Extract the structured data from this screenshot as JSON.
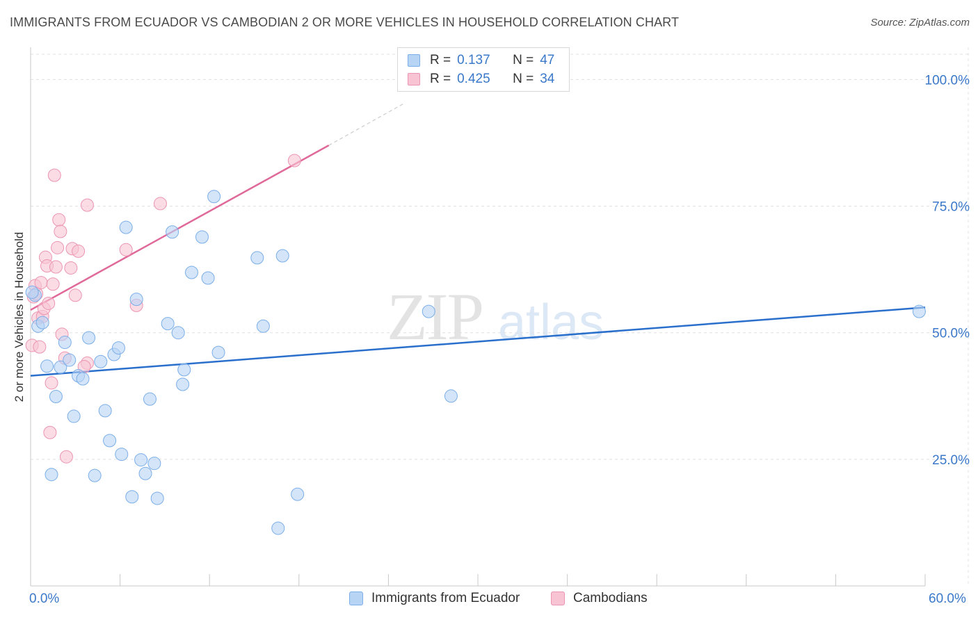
{
  "title": "IMMIGRANTS FROM ECUADOR VS CAMBODIAN 2 OR MORE VEHICLES IN HOUSEHOLD CORRELATION CHART",
  "source": "Source: ZipAtlas.com",
  "watermark": {
    "zip": "ZIP",
    "atlas": "atlas"
  },
  "legend": {
    "r_label": "R =",
    "n_label": "N =",
    "rows": [
      {
        "r": "0.137",
        "n": "47"
      },
      {
        "r": "0.425",
        "n": "34"
      }
    ]
  },
  "colors": {
    "series1_fill": "#b8d4f5",
    "series1_stroke": "#7aaee8",
    "series1_line": "#2a6fcc",
    "series2_fill": "#f8c4d4",
    "series2_stroke": "#ec94b2",
    "series2_line": "#e0699a",
    "axis_text": "#3a78c9"
  },
  "chart_data": {
    "type": "scatter",
    "title": "IMMIGRANTS FROM ECUADOR VS CAMBODIAN 2 OR MORE VEHICLES IN HOUSEHOLD CORRELATION CHART",
    "xlabel": "",
    "ylabel": "2 or more Vehicles in Household",
    "xlim": [
      0,
      60
    ],
    "ylim": [
      0,
      105
    ],
    "x_tick_labels": [
      "0.0%",
      "60.0%"
    ],
    "y_ticks": [
      25,
      50,
      75,
      100
    ],
    "y_tick_labels": [
      "25.0%",
      "50.0%",
      "75.0%",
      "100.0%"
    ],
    "grid": true,
    "series": [
      {
        "name": "Immigrants from Ecuador",
        "R": 0.137,
        "N": 47,
        "trend": {
          "x0": 0,
          "y0": 41.5,
          "x1": 60,
          "y1": 55.0
        },
        "points": [
          [
            0.3,
            57.4
          ],
          [
            0.5,
            51.3
          ],
          [
            0.8,
            52.0
          ],
          [
            1.1,
            43.4
          ],
          [
            1.4,
            22.0
          ],
          [
            1.7,
            37.4
          ],
          [
            2.0,
            43.2
          ],
          [
            2.3,
            48.1
          ],
          [
            2.6,
            44.6
          ],
          [
            2.9,
            33.5
          ],
          [
            3.2,
            41.5
          ],
          [
            3.5,
            40.9
          ],
          [
            3.9,
            49.0
          ],
          [
            4.3,
            21.8
          ],
          [
            4.7,
            44.3
          ],
          [
            5.0,
            34.6
          ],
          [
            5.3,
            28.7
          ],
          [
            5.6,
            45.7
          ],
          [
            5.9,
            47.0
          ],
          [
            6.1,
            26.0
          ],
          [
            6.4,
            70.8
          ],
          [
            6.8,
            17.6
          ],
          [
            7.1,
            56.6
          ],
          [
            7.4,
            24.9
          ],
          [
            7.7,
            22.2
          ],
          [
            8.0,
            36.9
          ],
          [
            8.3,
            24.2
          ],
          [
            8.5,
            17.3
          ],
          [
            9.2,
            51.8
          ],
          [
            9.5,
            69.9
          ],
          [
            9.9,
            50.0
          ],
          [
            10.3,
            42.7
          ],
          [
            10.8,
            61.9
          ],
          [
            11.5,
            68.9
          ],
          [
            11.9,
            60.8
          ],
          [
            12.3,
            76.9
          ],
          [
            12.6,
            46.1
          ],
          [
            15.2,
            64.8
          ],
          [
            15.6,
            51.3
          ],
          [
            16.6,
            11.4
          ],
          [
            16.9,
            65.2
          ],
          [
            17.9,
            18.1
          ],
          [
            10.2,
            39.8
          ],
          [
            26.7,
            54.2
          ],
          [
            28.2,
            37.5
          ],
          [
            59.6,
            54.2
          ],
          [
            0.1,
            58.0
          ]
        ]
      },
      {
        "name": "Cambodians",
        "R": 0.425,
        "N": 34,
        "trend": {
          "x0": 0,
          "y0": 54.5,
          "x1": 20,
          "y1": 87.0
        },
        "trend_dashed_end": {
          "x": 25,
          "y": 95.2
        },
        "points": [
          [
            0.1,
            47.5
          ],
          [
            0.2,
            57.1
          ],
          [
            0.3,
            59.3
          ],
          [
            0.4,
            57.7
          ],
          [
            0.5,
            52.9
          ],
          [
            0.6,
            47.2
          ],
          [
            0.7,
            59.9
          ],
          [
            0.8,
            53.2
          ],
          [
            0.9,
            54.8
          ],
          [
            1.0,
            64.9
          ],
          [
            1.1,
            63.2
          ],
          [
            1.2,
            55.8
          ],
          [
            1.3,
            30.3
          ],
          [
            1.4,
            40.1
          ],
          [
            1.5,
            59.6
          ],
          [
            1.6,
            81.1
          ],
          [
            1.7,
            63.0
          ],
          [
            1.8,
            66.8
          ],
          [
            1.9,
            72.3
          ],
          [
            2.0,
            70.0
          ],
          [
            2.1,
            49.7
          ],
          [
            2.4,
            25.5
          ],
          [
            2.3,
            45.0
          ],
          [
            2.7,
            62.8
          ],
          [
            2.8,
            66.6
          ],
          [
            3.0,
            57.4
          ],
          [
            3.2,
            66.1
          ],
          [
            3.8,
            75.2
          ],
          [
            3.8,
            44.0
          ],
          [
            3.6,
            43.3
          ],
          [
            6.4,
            66.4
          ],
          [
            7.1,
            55.4
          ],
          [
            8.7,
            75.5
          ],
          [
            17.7,
            84.0
          ]
        ]
      }
    ]
  }
}
